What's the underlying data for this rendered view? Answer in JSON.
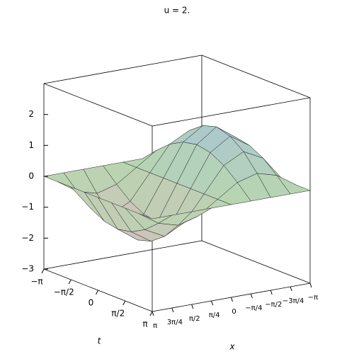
{
  "chart_data": {
    "type": "surface",
    "title": "u = 2.",
    "xlabel": "x",
    "tlabel": "t",
    "t": [
      -3.14159,
      -2.35619,
      -1.5708,
      -0.7854,
      0,
      0.7854,
      1.5708,
      2.35619,
      3.14159
    ],
    "x": [
      -3.14159,
      -2.35619,
      -1.5708,
      -0.7854,
      0,
      0.7854,
      1.5708,
      2.35619,
      3.14159
    ],
    "z": [
      [
        0,
        0,
        0,
        0,
        0,
        0,
        0,
        0,
        0
      ],
      [
        0,
        0.43,
        0.61,
        0.43,
        0,
        -0.43,
        -0.61,
        -0.43,
        0
      ],
      [
        0,
        0.81,
        1.14,
        0.81,
        0,
        -0.81,
        -1.14,
        -0.81,
        0
      ],
      [
        0,
        1.05,
        1.47,
        1.05,
        0,
        -1.05,
        -1.47,
        -1.05,
        0
      ],
      [
        0,
        1.14,
        1.6,
        1.14,
        0,
        -1.14,
        -1.6,
        -1.14,
        0
      ],
      [
        0,
        1.05,
        1.47,
        1.05,
        0,
        -1.05,
        -1.47,
        -1.05,
        0
      ],
      [
        0,
        0.81,
        1.14,
        0.81,
        0,
        -0.81,
        -1.14,
        -0.81,
        0
      ],
      [
        0,
        0.43,
        0.61,
        0.43,
        0,
        -0.43,
        -0.61,
        -0.43,
        0
      ],
      [
        0,
        0,
        0,
        0,
        0,
        0,
        0,
        0,
        0
      ]
    ],
    "tlim": [
      -3.14159,
      3.14159
    ],
    "xlim": [
      -3.14159,
      3.14159
    ],
    "zlim": [
      -3,
      3
    ],
    "zticks": [
      {
        "value": -3,
        "label": "−3"
      },
      {
        "value": -2,
        "label": "−2"
      },
      {
        "value": -1,
        "label": "−1"
      },
      0,
      1,
      2
    ],
    "tticks": [
      {
        "value": -3.14159,
        "label": "−π"
      },
      {
        "value": -1.5708,
        "label": "−π/2"
      },
      0,
      {
        "value": 1.5708,
        "label": "π/2"
      },
      {
        "value": 3.14159,
        "label": "π"
      }
    ],
    "xticks": [
      {
        "value": 3.14159,
        "label": "π"
      },
      {
        "value": 2.35619,
        "label": "3π/4"
      },
      {
        "value": 1.5708,
        "label": "π/2"
      },
      {
        "value": 0.7854,
        "label": "π/4"
      },
      0,
      {
        "value": -0.7854,
        "label": "−π/4"
      },
      {
        "value": -1.5708,
        "label": "−π/2"
      },
      {
        "value": -2.35619,
        "label": "−3π/4"
      },
      {
        "value": -3.14159,
        "label": "−π"
      }
    ]
  }
}
